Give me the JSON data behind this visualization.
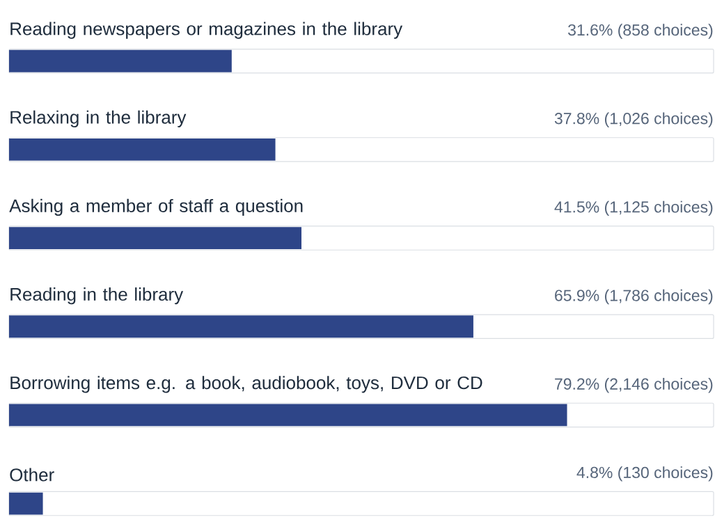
{
  "chart_data": {
    "type": "bar",
    "orientation": "horizontal",
    "color": "#2e4588",
    "xlim": [
      0,
      100
    ],
    "tick_labels": false,
    "categories": [
      "Reading newspapers or magazines in the library",
      "Relaxing in the library",
      "Asking a member of staff a question",
      "Reading in the library",
      "Borrowing items e.g. a book, audiobook, toys, DVD or CD",
      "Other"
    ],
    "values": [
      31.6,
      37.8,
      41.5,
      65.9,
      79.2,
      4.8
    ],
    "value_labels": [
      "31.6% (858 choices)",
      "37.8% (1,026 choices)",
      "41.5% (1,125 choices)",
      "65.9% (1,786 choices)",
      "79.2% (2,146 choices)",
      "4.8% (130 choices)"
    ]
  }
}
